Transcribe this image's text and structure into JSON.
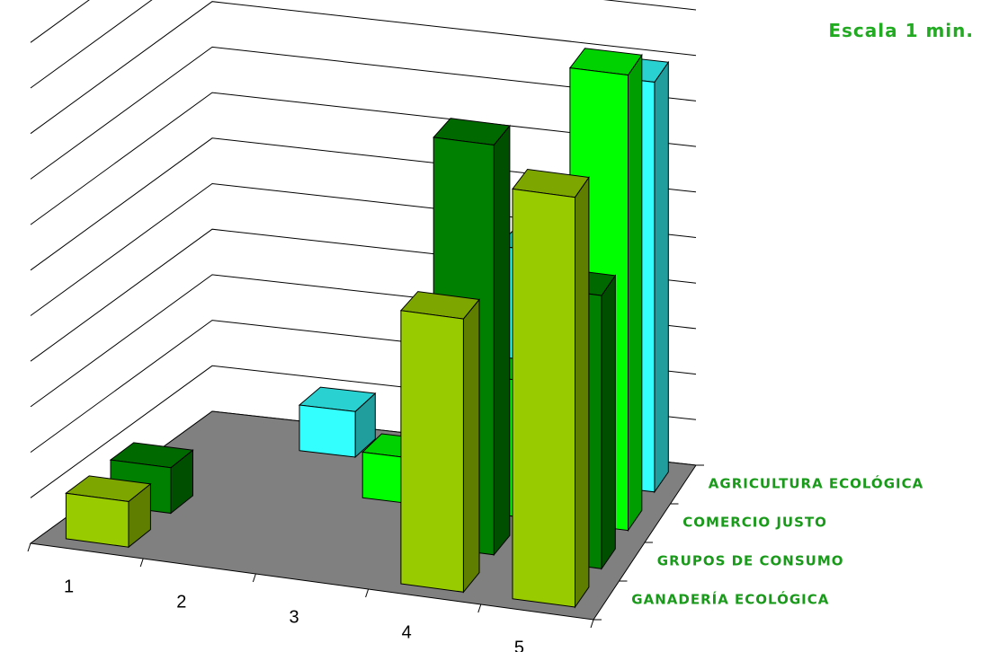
{
  "chart_data": {
    "type": "bar",
    "subtype": "3d-grouped-bar",
    "note": "Escala 1 min.",
    "categories": [
      "1",
      "2",
      "3",
      "4",
      "5"
    ],
    "series": [
      {
        "name": "GANADERÍA ECOLÓGICA",
        "color": "#99cc00",
        "values": [
          1,
          0,
          0,
          6,
          9
        ]
      },
      {
        "name": "GRUPOS DE CONSUMO",
        "color": "#008000",
        "values": [
          1,
          0,
          0,
          9,
          6
        ]
      },
      {
        "name": "COMERCIO JUSTO",
        "color": "#00ff00",
        "values": [
          0,
          0,
          1,
          3,
          10
        ]
      },
      {
        "name": "AGRICULTURA ECOLÓGICA",
        "color": "#33ffff",
        "values": [
          0,
          1,
          0,
          5,
          9
        ]
      }
    ],
    "ylim": [
      0,
      11
    ],
    "grid": true,
    "legend": "right"
  }
}
